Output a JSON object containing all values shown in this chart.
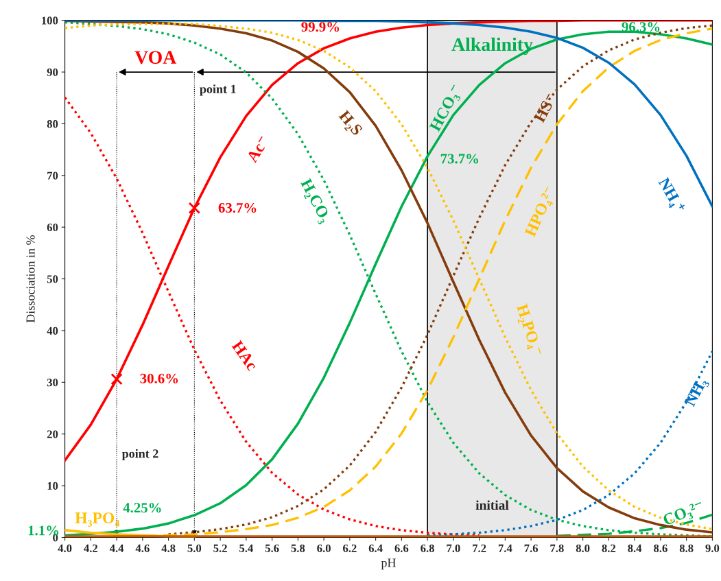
{
  "chart_data": {
    "type": "line",
    "xlabel": "pH",
    "ylabel": "Dissociation in %",
    "x": [
      4.0,
      4.2,
      4.4,
      4.6,
      4.8,
      5.0,
      5.2,
      5.4,
      5.6,
      5.8,
      6.0,
      6.2,
      6.4,
      6.6,
      6.8,
      7.0,
      7.2,
      7.4,
      7.6,
      7.8,
      8.0,
      8.2,
      8.4,
      8.6,
      8.8,
      9.0
    ],
    "xlim": [
      4.0,
      9.0
    ],
    "xticks": [
      {
        "value": 4,
        "label": "4.0"
      },
      4.2,
      4.4,
      4.6,
      4.8,
      {
        "value": 5,
        "label": "5.0"
      },
      5.2,
      5.4,
      5.6,
      5.8,
      {
        "value": 6,
        "label": "6.0"
      },
      6.2,
      6.4,
      6.6,
      6.8,
      {
        "value": 7,
        "label": "7.0"
      },
      7.2,
      7.4,
      7.6,
      7.8,
      {
        "value": 8,
        "label": "8.0"
      },
      8.2,
      8.4,
      8.6,
      8.8,
      {
        "value": 9,
        "label": "9.0"
      }
    ],
    "ylim": [
      0,
      100
    ],
    "yticks": [
      0,
      10,
      20,
      30,
      40,
      50,
      60,
      70,
      80,
      90,
      100
    ],
    "grid": false,
    "legend": false,
    "series": [
      {
        "name": "Ac⁻",
        "color": "#ff0000",
        "line_style": "solid",
        "values": [
          14.9,
          21.8,
          30.6,
          41.1,
          52.5,
          63.7,
          73.5,
          81.5,
          87.5,
          91.7,
          94.6,
          96.5,
          97.8,
          98.6,
          99.1,
          99.4,
          99.6,
          99.8,
          99.9,
          99.9,
          100,
          100,
          100,
          100,
          100,
          100
        ]
      },
      {
        "name": "HAc",
        "color": "#ff0000",
        "line_style": "dotted",
        "values": [
          85.1,
          78.2,
          69.4,
          58.9,
          47.5,
          36.3,
          26.5,
          18.5,
          12.5,
          8.3,
          5.4,
          3.5,
          2.2,
          1.4,
          0.9,
          0.6,
          0.4,
          null,
          null,
          null,
          null,
          null,
          null,
          null,
          null,
          null
        ]
      },
      {
        "name": "H₂CO₃",
        "color": "#00b050",
        "line_style": "dotted",
        "values": [
          99.6,
          99.3,
          98.9,
          98.3,
          97.3,
          95.7,
          93.4,
          89.9,
          84.9,
          78.0,
          69.1,
          58.5,
          47.1,
          36.0,
          26.2,
          18.3,
          12.4,
          8.2,
          5.3,
          3.4,
          2.2,
          1.4,
          0.9,
          0.6,
          0.4,
          0.2
        ]
      },
      {
        "name": "HCO₃⁻",
        "color": "#00b050",
        "line_style": "solid",
        "values": [
          0.4,
          0.7,
          1.1,
          1.7,
          2.7,
          4.3,
          6.6,
          10.1,
          15.1,
          22.0,
          30.9,
          41.5,
          52.9,
          64.0,
          73.7,
          81.7,
          87.5,
          91.7,
          94.5,
          96.3,
          97.3,
          97.8,
          97.8,
          97.3,
          96.5,
          95.3
        ]
      },
      {
        "name": "CO₃²⁻",
        "color": "#00b050",
        "line_style": "dashed",
        "values": [
          null,
          null,
          null,
          null,
          null,
          null,
          null,
          null,
          null,
          null,
          null,
          null,
          null,
          null,
          null,
          null,
          null,
          null,
          null,
          0.3,
          0.5,
          0.7,
          1.2,
          1.8,
          2.8,
          4.4
        ]
      },
      {
        "name": "H₂S",
        "color": "#843c0c",
        "line_style": "solid",
        "values": [
          99.9,
          99.8,
          99.7,
          99.6,
          99.4,
          99.0,
          98.4,
          97.5,
          96.1,
          93.9,
          90.7,
          86.1,
          79.6,
          71.0,
          60.8,
          49.4,
          38.2,
          28.0,
          19.7,
          13.4,
          8.9,
          5.8,
          3.7,
          2.4,
          1.5,
          1.0
        ]
      },
      {
        "name": "HS⁻",
        "color": "#843c0c",
        "line_style": "dotted",
        "values": [
          null,
          null,
          null,
          null,
          0.6,
          1.0,
          1.6,
          2.5,
          3.9,
          6.1,
          9.3,
          13.9,
          20.4,
          29.0,
          39.2,
          50.6,
          61.8,
          72.0,
          80.3,
          86.6,
          91.1,
          94.2,
          96.3,
          97.6,
          98.5,
          99.0
        ]
      },
      {
        "name": "H₃PO₄",
        "color": "#ffc000",
        "line_style": "solid",
        "values": [
          1.4,
          0.9,
          0.6,
          0.4,
          0.2,
          0.1,
          null,
          null,
          null,
          null,
          null,
          null,
          null,
          null,
          null,
          null,
          null,
          null,
          null,
          null,
          null,
          null,
          null,
          null,
          null,
          null
        ]
      },
      {
        "name": "H₂PO₄⁻",
        "color": "#ffc000",
        "line_style": "dotted",
        "values": [
          98.5,
          99.0,
          99.2,
          99.3,
          99.4,
          99.3,
          98.9,
          98.4,
          97.6,
          96.2,
          94.1,
          90.9,
          86.3,
          79.9,
          71.5,
          61.3,
          50.0,
          38.7,
          28.5,
          20.1,
          13.7,
          9.1,
          5.9,
          3.8,
          2.5,
          1.6
        ]
      },
      {
        "name": "HPO₄²⁻",
        "color": "#ffc000",
        "line_style": "dashed",
        "values": [
          null,
          null,
          null,
          0.3,
          0.4,
          0.6,
          1.0,
          1.6,
          2.4,
          3.8,
          5.9,
          9.1,
          13.7,
          20.1,
          28.5,
          38.7,
          50.0,
          61.3,
          71.5,
          79.9,
          86.3,
          90.9,
          94.1,
          96.2,
          97.5,
          98.4
        ]
      },
      {
        "name": "NH₄⁺",
        "color": "#0070c0",
        "line_style": "solid",
        "values": [
          100,
          100,
          100,
          100,
          100,
          100,
          100,
          100,
          100,
          100,
          99.9,
          99.9,
          99.9,
          99.8,
          99.6,
          99.4,
          99.1,
          98.6,
          97.8,
          96.6,
          94.7,
          91.8,
          87.6,
          81.7,
          73.8,
          64.0
        ]
      },
      {
        "name": "NH₃",
        "color": "#0070c0",
        "line_style": "dotted",
        "values": [
          null,
          null,
          null,
          null,
          null,
          null,
          null,
          null,
          null,
          null,
          null,
          null,
          null,
          null,
          0.4,
          0.6,
          0.9,
          1.4,
          2.2,
          3.4,
          5.3,
          8.2,
          12.4,
          18.3,
          26.2,
          36.0
        ]
      },
      {
        "color": "#c55a11",
        "line_style": "solid",
        "values": [
          0.2,
          0.2,
          0.2,
          0.2,
          0.2,
          0.2,
          0.2,
          0.2,
          0.2,
          0.2,
          0.2,
          0.2,
          0.2,
          0.2,
          0.2,
          0.2,
          0.2,
          0.2,
          0.2,
          0.2,
          0.2,
          0.2,
          0.2,
          0.2,
          0.2,
          0.2
        ]
      },
      {
        "type": "scatter",
        "marker": "cross",
        "color": "#ff0000",
        "x": [
          4.4,
          5.0
        ],
        "values": [
          30.6,
          63.7
        ]
      }
    ],
    "bands": [
      {
        "axis": "x",
        "from": 6.8,
        "to": 7.8,
        "label": "initial",
        "color": "#e8e8e8"
      }
    ],
    "ref_lines": [
      {
        "axis": "x",
        "value": 5.0,
        "label": "point 1",
        "line_style": "dotted"
      },
      {
        "axis": "x",
        "value": 4.4,
        "label": "point 2",
        "line_style": "dotted"
      }
    ],
    "annotations": [
      "VOA",
      "Alkalinity",
      "99.9%",
      "96.3%",
      "73.7%",
      "63.7%",
      "30.6%",
      "4.25%",
      "1.1%"
    ]
  }
}
